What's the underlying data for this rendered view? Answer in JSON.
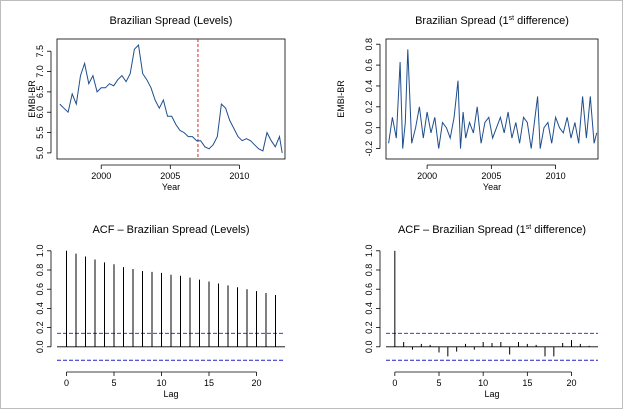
{
  "chart_data": [
    {
      "type": "line",
      "title": "Brazilian Spread (Levels)",
      "title_superscript": "",
      "title_suffix": "",
      "xlabel": "Year",
      "ylabel": "EMBI-BR",
      "xlim": [
        1996.8,
        2013.3
      ],
      "ylim": [
        4.85,
        7.8
      ],
      "xticks": [
        2000,
        2005,
        2010
      ],
      "yticks": [
        5.0,
        5.5,
        6.0,
        6.5,
        7.0,
        7.5
      ],
      "ytick_labels": [
        "5.0",
        "5.5",
        "6.0",
        "6.5",
        "7.0",
        "7.5"
      ],
      "line_color": "#1f4e8c",
      "vline": {
        "x": 2007.0,
        "color": "#d62728",
        "style": "dashed"
      },
      "series": [
        {
          "x": [
            1997.0,
            1997.3,
            1997.6,
            1997.9,
            1998.2,
            1998.5,
            1998.8,
            1999.1,
            1999.4,
            1999.7,
            2000.0,
            2000.3,
            2000.6,
            2000.9,
            2001.2,
            2001.5,
            2001.8,
            2002.1,
            2002.4,
            2002.7,
            2003.0,
            2003.3,
            2003.6,
            2003.9,
            2004.2,
            2004.5,
            2004.8,
            2005.1,
            2005.4,
            2005.7,
            2006.0,
            2006.3,
            2006.6,
            2006.9,
            2007.2,
            2007.5,
            2007.8,
            2008.1,
            2008.4,
            2008.7,
            2009.0,
            2009.3,
            2009.6,
            2009.9,
            2010.2,
            2010.5,
            2010.8,
            2011.1,
            2011.4,
            2011.7,
            2012.0,
            2012.3,
            2012.6,
            2012.9,
            2013.1
          ],
          "y": [
            6.2,
            6.1,
            6.0,
            6.45,
            6.2,
            6.9,
            7.2,
            6.7,
            6.9,
            6.5,
            6.6,
            6.6,
            6.7,
            6.65,
            6.8,
            6.9,
            6.75,
            6.95,
            7.55,
            7.65,
            6.95,
            6.8,
            6.6,
            6.3,
            6.1,
            6.3,
            5.9,
            5.9,
            5.7,
            5.55,
            5.5,
            5.4,
            5.4,
            5.3,
            5.3,
            5.15,
            5.1,
            5.2,
            5.4,
            6.2,
            6.1,
            5.8,
            5.6,
            5.4,
            5.3,
            5.35,
            5.3,
            5.2,
            5.1,
            5.05,
            5.5,
            5.3,
            5.15,
            5.4,
            5.0
          ]
        }
      ]
    },
    {
      "type": "line",
      "title": "Brazilian Spread (1",
      "title_superscript": "st",
      "title_suffix": " difference)",
      "xlabel": "Year",
      "ylabel": "EMBI-BR",
      "xlim": [
        1996.8,
        2013.3
      ],
      "ylim": [
        -0.3,
        0.85
      ],
      "xticks": [
        2000,
        2005,
        2010
      ],
      "yticks": [
        -0.2,
        0.0,
        0.2,
        0.4,
        0.6,
        0.8
      ],
      "ytick_labels": [
        "-0.2",
        "0.0",
        "0.2",
        "0.4",
        "0.6",
        "0.8"
      ],
      "line_color": "#1f4e8c",
      "series": [
        {
          "x": [
            1997.0,
            1997.3,
            1997.6,
            1997.9,
            1998.1,
            1998.3,
            1998.5,
            1998.8,
            1999.1,
            1999.4,
            1999.7,
            2000.0,
            2000.3,
            2000.6,
            2000.9,
            2001.2,
            2001.5,
            2001.8,
            2002.1,
            2002.4,
            2002.6,
            2002.8,
            2003.0,
            2003.3,
            2003.6,
            2003.9,
            2004.2,
            2004.5,
            2004.8,
            2005.1,
            2005.4,
            2005.7,
            2006.0,
            2006.3,
            2006.6,
            2006.9,
            2007.2,
            2007.5,
            2007.8,
            2008.1,
            2008.4,
            2008.6,
            2008.8,
            2009.1,
            2009.4,
            2009.7,
            2010.0,
            2010.3,
            2010.6,
            2010.9,
            2011.2,
            2011.5,
            2011.8,
            2012.1,
            2012.4,
            2012.7,
            2013.0,
            2013.2
          ],
          "y": [
            -0.15,
            0.1,
            -0.1,
            0.63,
            -0.2,
            0.05,
            0.75,
            -0.15,
            0.0,
            0.2,
            -0.1,
            0.15,
            -0.05,
            0.1,
            -0.2,
            0.05,
            0.0,
            -0.1,
            0.1,
            0.45,
            -0.2,
            0.15,
            -0.1,
            0.05,
            -0.05,
            0.2,
            -0.15,
            0.05,
            0.1,
            -0.1,
            0.0,
            0.1,
            -0.05,
            0.15,
            -0.1,
            0.05,
            -0.15,
            0.1,
            0.05,
            -0.2,
            0.1,
            0.3,
            -0.2,
            0.0,
            0.05,
            -0.15,
            0.1,
            0.0,
            -0.05,
            0.1,
            -0.1,
            0.05,
            -0.15,
            0.3,
            -0.1,
            0.3,
            -0.15,
            -0.05
          ]
        }
      ]
    },
    {
      "type": "bar",
      "title": "ACF – Brazilian Spread (Levels)",
      "title_superscript": "",
      "title_suffix": "",
      "xlabel": "Lag",
      "ylabel": "",
      "xlim": [
        -1,
        23
      ],
      "ylim": [
        -0.2,
        1.05
      ],
      "xticks": [
        0,
        5,
        10,
        15,
        20
      ],
      "yticks": [
        0.0,
        0.2,
        0.4,
        0.6,
        0.8,
        1.0
      ],
      "ytick_labels": [
        "0.0",
        "0.2",
        "0.4",
        "0.6",
        "0.8",
        "1.0"
      ],
      "conf_band": 0.14,
      "conf_color": "#2222cc",
      "lags": [
        0,
        1,
        2,
        3,
        4,
        5,
        6,
        7,
        8,
        9,
        10,
        11,
        12,
        13,
        14,
        15,
        16,
        17,
        18,
        19,
        20,
        21,
        22
      ],
      "values": [
        1.0,
        0.97,
        0.94,
        0.91,
        0.88,
        0.86,
        0.83,
        0.81,
        0.79,
        0.78,
        0.77,
        0.75,
        0.74,
        0.72,
        0.7,
        0.68,
        0.66,
        0.64,
        0.62,
        0.6,
        0.58,
        0.56,
        0.54
      ]
    },
    {
      "type": "bar",
      "title": "ACF – Brazilian Spread (1",
      "title_superscript": "st",
      "title_suffix": " difference)",
      "xlabel": "Lag",
      "ylabel": "",
      "xlim": [
        -1,
        23
      ],
      "ylim": [
        -0.2,
        1.05
      ],
      "xticks": [
        0,
        5,
        10,
        15,
        20
      ],
      "yticks": [
        0.0,
        0.2,
        0.4,
        0.6,
        0.8,
        1.0
      ],
      "ytick_labels": [
        "0.0",
        "0.2",
        "0.4",
        "0.6",
        "0.8",
        "1.0"
      ],
      "conf_band": 0.14,
      "conf_color": "#2222cc",
      "lags": [
        0,
        1,
        2,
        3,
        4,
        5,
        6,
        7,
        8,
        9,
        10,
        11,
        12,
        13,
        14,
        15,
        16,
        17,
        18,
        19,
        20,
        21,
        22
      ],
      "values": [
        1.0,
        0.05,
        -0.03,
        0.03,
        0.02,
        -0.06,
        -0.1,
        -0.05,
        0.03,
        -0.03,
        0.05,
        0.04,
        0.05,
        -0.08,
        0.05,
        0.03,
        0.02,
        -0.1,
        -0.1,
        0.04,
        0.07,
        0.03,
        0.01
      ]
    }
  ]
}
